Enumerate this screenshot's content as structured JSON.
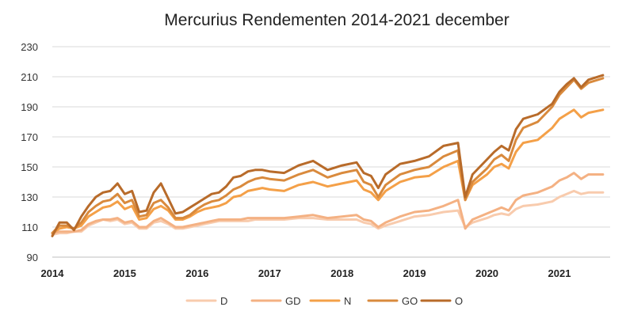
{
  "chart_data": {
    "type": "line",
    "title": "Mercurius Rendementen 2014-2021 december",
    "xlabel": "",
    "ylabel": "",
    "ylim": [
      90,
      230
    ],
    "yticks": [
      90,
      110,
      130,
      150,
      170,
      190,
      210,
      230
    ],
    "xlim": [
      2014,
      2021.7
    ],
    "xticks": [
      "2014",
      "2015",
      "2016",
      "2017",
      "2018",
      "2019",
      "2020",
      "2021"
    ],
    "grid": true,
    "legend": "bottom",
    "series": [
      {
        "name": "D",
        "color": "#f8cbad",
        "points": [
          [
            2014,
            105
          ],
          [
            2014.1,
            106
          ],
          [
            2014.2,
            106
          ],
          [
            2014.3,
            107
          ],
          [
            2014.4,
            107
          ],
          [
            2014.5,
            111
          ],
          [
            2014.6,
            113
          ],
          [
            2014.7,
            115
          ],
          [
            2014.8,
            114
          ],
          [
            2014.9,
            115
          ],
          [
            2015.0,
            112
          ],
          [
            2015.1,
            113
          ],
          [
            2015.2,
            109
          ],
          [
            2015.3,
            109
          ],
          [
            2015.4,
            113
          ],
          [
            2015.5,
            114
          ],
          [
            2015.6,
            112
          ],
          [
            2015.7,
            109
          ],
          [
            2015.8,
            109
          ],
          [
            2015.9,
            110
          ],
          [
            2016.0,
            111
          ],
          [
            2016.1,
            112
          ],
          [
            2016.2,
            113
          ],
          [
            2016.3,
            114
          ],
          [
            2016.4,
            114
          ],
          [
            2016.5,
            114
          ],
          [
            2016.6,
            114
          ],
          [
            2016.7,
            114
          ],
          [
            2016.8,
            115
          ],
          [
            2016.9,
            115
          ],
          [
            2017.0,
            115
          ],
          [
            2017.2,
            115
          ],
          [
            2017.4,
            116
          ],
          [
            2017.6,
            116
          ],
          [
            2017.8,
            115
          ],
          [
            2018.0,
            115
          ],
          [
            2018.2,
            115
          ],
          [
            2018.3,
            113
          ],
          [
            2018.4,
            112
          ],
          [
            2018.5,
            109
          ],
          [
            2018.6,
            111
          ],
          [
            2018.8,
            114
          ],
          [
            2019.0,
            117
          ],
          [
            2019.2,
            118
          ],
          [
            2019.4,
            120
          ],
          [
            2019.6,
            121
          ],
          [
            2019.7,
            110
          ],
          [
            2019.8,
            113
          ],
          [
            2020.0,
            116
          ],
          [
            2020.1,
            118
          ],
          [
            2020.2,
            119
          ],
          [
            2020.3,
            118
          ],
          [
            2020.4,
            122
          ],
          [
            2020.5,
            124
          ],
          [
            2020.7,
            125
          ],
          [
            2020.9,
            127
          ],
          [
            2021.0,
            130
          ],
          [
            2021.1,
            132
          ],
          [
            2021.2,
            134
          ],
          [
            2021.3,
            132
          ],
          [
            2021.4,
            133
          ],
          [
            2021.6,
            133
          ]
        ]
      },
      {
        "name": "GD",
        "color": "#f4b183",
        "points": [
          [
            2014,
            106
          ],
          [
            2014.1,
            107
          ],
          [
            2014.2,
            107
          ],
          [
            2014.3,
            107
          ],
          [
            2014.4,
            108
          ],
          [
            2014.5,
            112
          ],
          [
            2014.6,
            114
          ],
          [
            2014.7,
            115
          ],
          [
            2014.8,
            115
          ],
          [
            2014.9,
            116
          ],
          [
            2015.0,
            113
          ],
          [
            2015.1,
            114
          ],
          [
            2015.2,
            110
          ],
          [
            2015.3,
            110
          ],
          [
            2015.4,
            114
          ],
          [
            2015.5,
            116
          ],
          [
            2015.6,
            113
          ],
          [
            2015.7,
            110
          ],
          [
            2015.8,
            110
          ],
          [
            2015.9,
            111
          ],
          [
            2016.0,
            112
          ],
          [
            2016.1,
            113
          ],
          [
            2016.2,
            114
          ],
          [
            2016.3,
            115
          ],
          [
            2016.4,
            115
          ],
          [
            2016.5,
            115
          ],
          [
            2016.6,
            115
          ],
          [
            2016.7,
            116
          ],
          [
            2016.8,
            116
          ],
          [
            2016.9,
            116
          ],
          [
            2017.0,
            116
          ],
          [
            2017.2,
            116
          ],
          [
            2017.4,
            117
          ],
          [
            2017.6,
            118
          ],
          [
            2017.8,
            116
          ],
          [
            2018.0,
            117
          ],
          [
            2018.2,
            118
          ],
          [
            2018.3,
            115
          ],
          [
            2018.4,
            114
          ],
          [
            2018.5,
            110
          ],
          [
            2018.6,
            113
          ],
          [
            2018.8,
            117
          ],
          [
            2019.0,
            120
          ],
          [
            2019.2,
            121
          ],
          [
            2019.4,
            124
          ],
          [
            2019.6,
            128
          ],
          [
            2019.7,
            109
          ],
          [
            2019.8,
            115
          ],
          [
            2020.0,
            119
          ],
          [
            2020.1,
            121
          ],
          [
            2020.2,
            123
          ],
          [
            2020.3,
            121
          ],
          [
            2020.4,
            128
          ],
          [
            2020.5,
            131
          ],
          [
            2020.7,
            133
          ],
          [
            2020.9,
            137
          ],
          [
            2021.0,
            141
          ],
          [
            2021.1,
            143
          ],
          [
            2021.2,
            146
          ],
          [
            2021.3,
            142
          ],
          [
            2021.4,
            145
          ],
          [
            2021.6,
            145
          ]
        ]
      },
      {
        "name": "N",
        "color": "#f4a048",
        "points": [
          [
            2014,
            106
          ],
          [
            2014.1,
            109
          ],
          [
            2014.2,
            110
          ],
          [
            2014.3,
            109
          ],
          [
            2014.4,
            111
          ],
          [
            2014.5,
            117
          ],
          [
            2014.6,
            120
          ],
          [
            2014.7,
            123
          ],
          [
            2014.8,
            124
          ],
          [
            2014.9,
            127
          ],
          [
            2015.0,
            122
          ],
          [
            2015.1,
            124
          ],
          [
            2015.2,
            115
          ],
          [
            2015.3,
            116
          ],
          [
            2015.4,
            122
          ],
          [
            2015.5,
            124
          ],
          [
            2015.6,
            121
          ],
          [
            2015.7,
            115
          ],
          [
            2015.8,
            115
          ],
          [
            2015.9,
            117
          ],
          [
            2016.0,
            120
          ],
          [
            2016.1,
            122
          ],
          [
            2016.2,
            123
          ],
          [
            2016.3,
            124
          ],
          [
            2016.4,
            126
          ],
          [
            2016.5,
            130
          ],
          [
            2016.6,
            131
          ],
          [
            2016.7,
            134
          ],
          [
            2016.8,
            135
          ],
          [
            2016.9,
            136
          ],
          [
            2017.0,
            135
          ],
          [
            2017.2,
            134
          ],
          [
            2017.4,
            138
          ],
          [
            2017.6,
            140
          ],
          [
            2017.8,
            137
          ],
          [
            2018.0,
            139
          ],
          [
            2018.2,
            141
          ],
          [
            2018.3,
            135
          ],
          [
            2018.4,
            133
          ],
          [
            2018.5,
            128
          ],
          [
            2018.6,
            134
          ],
          [
            2018.8,
            140
          ],
          [
            2019.0,
            143
          ],
          [
            2019.2,
            144
          ],
          [
            2019.4,
            150
          ],
          [
            2019.6,
            154
          ],
          [
            2019.7,
            128
          ],
          [
            2019.8,
            138
          ],
          [
            2020.0,
            145
          ],
          [
            2020.1,
            150
          ],
          [
            2020.2,
            152
          ],
          [
            2020.3,
            149
          ],
          [
            2020.4,
            160
          ],
          [
            2020.5,
            166
          ],
          [
            2020.7,
            168
          ],
          [
            2020.9,
            176
          ],
          [
            2021.0,
            182
          ],
          [
            2021.1,
            185
          ],
          [
            2021.2,
            188
          ],
          [
            2021.3,
            183
          ],
          [
            2021.4,
            186
          ],
          [
            2021.6,
            188
          ]
        ]
      },
      {
        "name": "GO",
        "color": "#d98a3d",
        "points": [
          [
            2014,
            106
          ],
          [
            2014.1,
            111
          ],
          [
            2014.2,
            111
          ],
          [
            2014.3,
            109
          ],
          [
            2014.4,
            113
          ],
          [
            2014.5,
            120
          ],
          [
            2014.6,
            124
          ],
          [
            2014.7,
            127
          ],
          [
            2014.8,
            128
          ],
          [
            2014.9,
            132
          ],
          [
            2015.0,
            126
          ],
          [
            2015.1,
            128
          ],
          [
            2015.2,
            117
          ],
          [
            2015.3,
            118
          ],
          [
            2015.4,
            126
          ],
          [
            2015.5,
            128
          ],
          [
            2015.6,
            123
          ],
          [
            2015.7,
            116
          ],
          [
            2015.8,
            116
          ],
          [
            2015.9,
            118
          ],
          [
            2016.0,
            122
          ],
          [
            2016.1,
            125
          ],
          [
            2016.2,
            127
          ],
          [
            2016.3,
            128
          ],
          [
            2016.4,
            131
          ],
          [
            2016.5,
            135
          ],
          [
            2016.6,
            137
          ],
          [
            2016.7,
            140
          ],
          [
            2016.8,
            142
          ],
          [
            2016.9,
            143
          ],
          [
            2017.0,
            142
          ],
          [
            2017.2,
            141
          ],
          [
            2017.4,
            145
          ],
          [
            2017.6,
            148
          ],
          [
            2017.8,
            143
          ],
          [
            2018.0,
            146
          ],
          [
            2018.2,
            148
          ],
          [
            2018.3,
            140
          ],
          [
            2018.4,
            138
          ],
          [
            2018.5,
            130
          ],
          [
            2018.6,
            138
          ],
          [
            2018.8,
            145
          ],
          [
            2019.0,
            148
          ],
          [
            2019.2,
            150
          ],
          [
            2019.4,
            157
          ],
          [
            2019.6,
            161
          ],
          [
            2019.7,
            128
          ],
          [
            2019.8,
            140
          ],
          [
            2020.0,
            149
          ],
          [
            2020.1,
            155
          ],
          [
            2020.2,
            158
          ],
          [
            2020.3,
            154
          ],
          [
            2020.4,
            168
          ],
          [
            2020.5,
            176
          ],
          [
            2020.7,
            180
          ],
          [
            2020.9,
            190
          ],
          [
            2021.0,
            198
          ],
          [
            2021.1,
            203
          ],
          [
            2021.2,
            208
          ],
          [
            2021.3,
            202
          ],
          [
            2021.4,
            206
          ],
          [
            2021.6,
            209
          ]
        ]
      },
      {
        "name": "O",
        "color": "#b86b2a",
        "points": [
          [
            2014,
            104
          ],
          [
            2014.1,
            113
          ],
          [
            2014.2,
            113
          ],
          [
            2014.3,
            108
          ],
          [
            2014.4,
            117
          ],
          [
            2014.5,
            124
          ],
          [
            2014.6,
            130
          ],
          [
            2014.7,
            133
          ],
          [
            2014.8,
            134
          ],
          [
            2014.9,
            139
          ],
          [
            2015.0,
            132
          ],
          [
            2015.1,
            134
          ],
          [
            2015.2,
            120
          ],
          [
            2015.3,
            121
          ],
          [
            2015.4,
            133
          ],
          [
            2015.5,
            139
          ],
          [
            2015.6,
            129
          ],
          [
            2015.7,
            119
          ],
          [
            2015.8,
            120
          ],
          [
            2015.9,
            123
          ],
          [
            2016.0,
            126
          ],
          [
            2016.1,
            129
          ],
          [
            2016.2,
            132
          ],
          [
            2016.3,
            133
          ],
          [
            2016.4,
            137
          ],
          [
            2016.5,
            143
          ],
          [
            2016.6,
            144
          ],
          [
            2016.7,
            147
          ],
          [
            2016.8,
            148
          ],
          [
            2016.9,
            148
          ],
          [
            2017.0,
            147
          ],
          [
            2017.2,
            146
          ],
          [
            2017.4,
            151
          ],
          [
            2017.6,
            154
          ],
          [
            2017.8,
            148
          ],
          [
            2018.0,
            151
          ],
          [
            2018.2,
            153
          ],
          [
            2018.3,
            146
          ],
          [
            2018.4,
            144
          ],
          [
            2018.5,
            136
          ],
          [
            2018.6,
            145
          ],
          [
            2018.8,
            152
          ],
          [
            2019.0,
            154
          ],
          [
            2019.2,
            157
          ],
          [
            2019.4,
            164
          ],
          [
            2019.6,
            166
          ],
          [
            2019.7,
            130
          ],
          [
            2019.8,
            145
          ],
          [
            2020.0,
            155
          ],
          [
            2020.1,
            160
          ],
          [
            2020.2,
            164
          ],
          [
            2020.3,
            161
          ],
          [
            2020.4,
            175
          ],
          [
            2020.5,
            182
          ],
          [
            2020.7,
            185
          ],
          [
            2020.9,
            192
          ],
          [
            2021.0,
            200
          ],
          [
            2021.1,
            205
          ],
          [
            2021.2,
            209
          ],
          [
            2021.3,
            203
          ],
          [
            2021.4,
            208
          ],
          [
            2021.6,
            211
          ]
        ]
      }
    ]
  }
}
